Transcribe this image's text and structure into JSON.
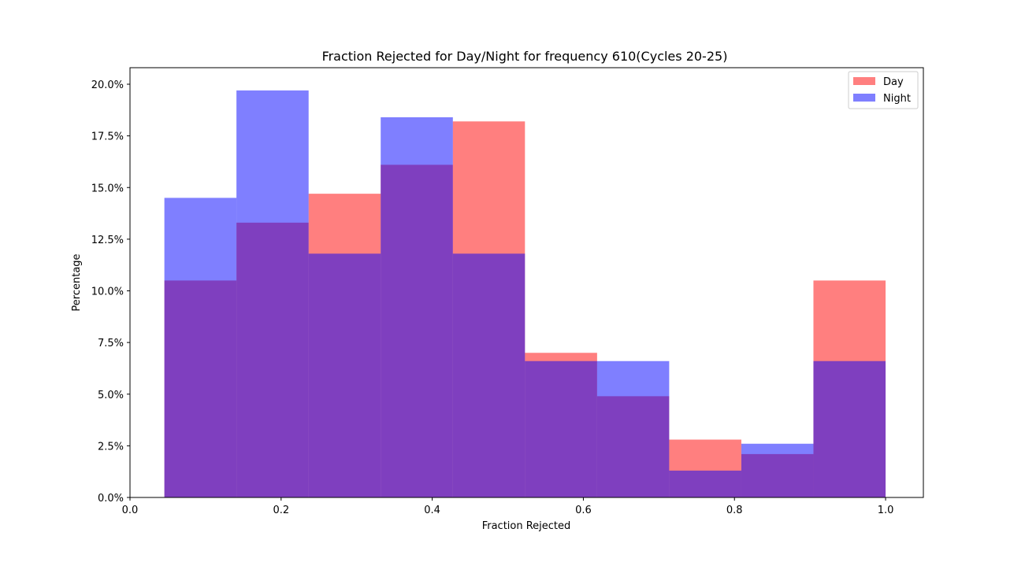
{
  "chart_data": {
    "type": "bar",
    "title": "Fraction Rejected for Day/Night for frequency 610(Cycles 20-25)",
    "xlabel": "Fraction Rejected",
    "ylabel": "Percentage",
    "xlim": [
      0.0,
      1.05
    ],
    "ylim": [
      0.0,
      0.208
    ],
    "x_ticks": [
      0.0,
      0.2,
      0.4,
      0.6,
      0.8,
      1.0
    ],
    "x_tick_labels": [
      "0.0",
      "0.2",
      "0.4",
      "0.6",
      "0.8",
      "1.0"
    ],
    "y_ticks": [
      0.0,
      0.025,
      0.05,
      0.075,
      0.1,
      0.125,
      0.15,
      0.175,
      0.2
    ],
    "y_tick_labels": [
      "0.0%",
      "2.5%",
      "5.0%",
      "7.5%",
      "10.0%",
      "12.5%",
      "15.0%",
      "17.5%",
      "20.0%"
    ],
    "bin_edges": [
      0.0455,
      0.1409,
      0.2364,
      0.3318,
      0.4273,
      0.5227,
      0.6182,
      0.7136,
      0.8091,
      0.9045,
      1.0
    ],
    "series": [
      {
        "name": "Day",
        "color": "#ff0000",
        "alpha": 0.5,
        "values": [
          0.105,
          0.133,
          0.147,
          0.161,
          0.182,
          0.07,
          0.049,
          0.028,
          0.021,
          0.105
        ]
      },
      {
        "name": "Night",
        "color": "#0000ff",
        "alpha": 0.5,
        "values": [
          0.145,
          0.197,
          0.118,
          0.184,
          0.118,
          0.066,
          0.066,
          0.013,
          0.026,
          0.066
        ]
      }
    ],
    "grid": false,
    "legend": "top-right"
  }
}
